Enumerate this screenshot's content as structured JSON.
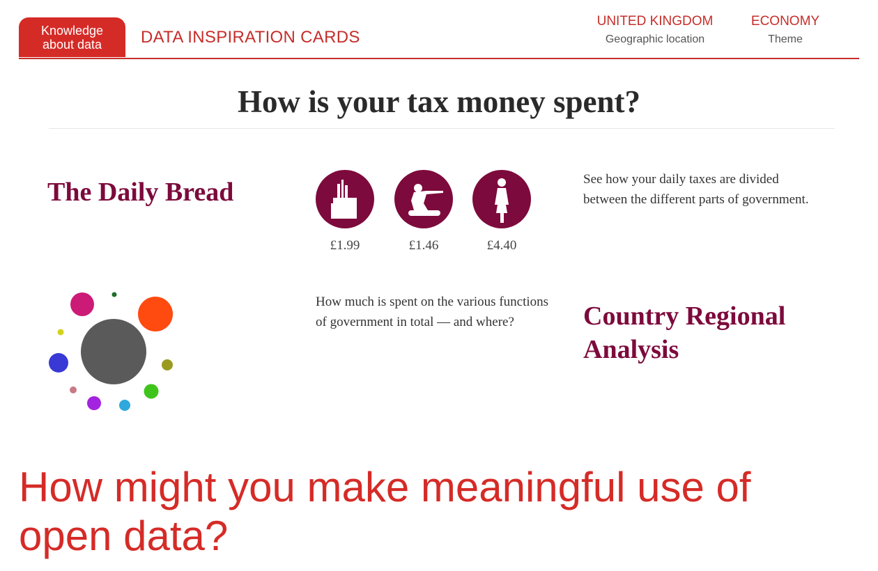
{
  "header": {
    "badge": "Knowledge about data",
    "cards_title": "DATA INSPIRATION CARDS",
    "location_value": "UNITED KINGDOM",
    "location_label": "Geographic location",
    "theme_value": "ECONOMY",
    "theme_label": "Theme"
  },
  "page_title": "How is your tax money spent?",
  "daily_bread": {
    "title": "The Daily Bread",
    "description": "See how your daily taxes are divided between the different parts of government.",
    "items": [
      {
        "icon": "factory-icon",
        "amount": "£1.99"
      },
      {
        "icon": "soldier-tank-icon",
        "amount": "£1.46"
      },
      {
        "icon": "elderly-person-icon",
        "amount": "£4.40"
      }
    ]
  },
  "regional": {
    "title": "Country Regional Analysis",
    "description": "How much is spent on the various functions of government in total — and where?"
  },
  "colors": {
    "brand_red": "#d52b27",
    "card_maroon": "#7d0a3c",
    "bubble_center": "#5a5a5a",
    "bubbles": [
      "#cc1a77",
      "#1e6f2b",
      "#ff4a10",
      "#d4d21c",
      "#3939d6",
      "#9a9a20",
      "#c97a84",
      "#a323e0",
      "#2ea8dd",
      "#3fc41c"
    ]
  },
  "question": "How might you make meaningful use of open data?"
}
